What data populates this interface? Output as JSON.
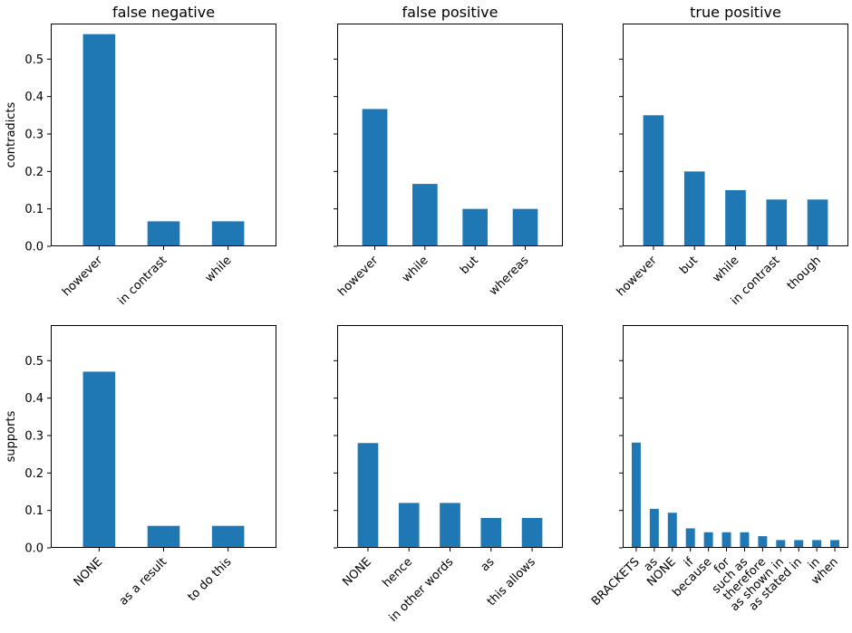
{
  "chart_data": [
    {
      "type": "bar",
      "title": "false negative",
      "ylabel": "contradicts",
      "categories": [
        "however",
        "in contrast",
        "while"
      ],
      "values": [
        0.5667,
        0.0667,
        0.0667
      ],
      "ylim": [
        0,
        0.595
      ],
      "yticks": [
        0.0,
        0.1,
        0.2,
        0.3,
        0.4,
        0.5
      ],
      "ytick_labels": [
        "0.0",
        "0.1",
        "0.2",
        "0.3",
        "0.4",
        "0.5"
      ],
      "color": "#1f77b4"
    },
    {
      "type": "bar",
      "title": "false positive",
      "ylabel": "",
      "categories": [
        "however",
        "while",
        "but",
        "whereas"
      ],
      "values": [
        0.3667,
        0.1667,
        0.1,
        0.1
      ],
      "ylim": [
        0,
        0.595
      ],
      "yticks": [
        0.0,
        0.1,
        0.2,
        0.3,
        0.4,
        0.5
      ],
      "ytick_labels": [],
      "color": "#1f77b4"
    },
    {
      "type": "bar",
      "title": "true positive",
      "ylabel": "",
      "categories": [
        "however",
        "but",
        "while",
        "in contrast",
        "though"
      ],
      "values": [
        0.35,
        0.2,
        0.15,
        0.125,
        0.125
      ],
      "ylim": [
        0,
        0.595
      ],
      "yticks": [
        0.0,
        0.1,
        0.2,
        0.3,
        0.4,
        0.5
      ],
      "ytick_labels": [],
      "color": "#1f77b4"
    },
    {
      "type": "bar",
      "title": "",
      "ylabel": "supports",
      "categories": [
        "NONE",
        "as a result",
        "to do this"
      ],
      "values": [
        0.4706,
        0.0588,
        0.0588
      ],
      "ylim": [
        0,
        0.595
      ],
      "yticks": [
        0.0,
        0.1,
        0.2,
        0.3,
        0.4,
        0.5
      ],
      "ytick_labels": [
        "0.0",
        "0.1",
        "0.2",
        "0.3",
        "0.4",
        "0.5"
      ],
      "color": "#1f77b4"
    },
    {
      "type": "bar",
      "title": "",
      "ylabel": "",
      "categories": [
        "NONE",
        "hence",
        "in other words",
        "as",
        "this allows"
      ],
      "values": [
        0.28,
        0.12,
        0.12,
        0.08,
        0.08
      ],
      "ylim": [
        0,
        0.595
      ],
      "yticks": [
        0.0,
        0.1,
        0.2,
        0.3,
        0.4,
        0.5
      ],
      "ytick_labels": [],
      "color": "#1f77b4"
    },
    {
      "type": "bar",
      "title": "",
      "ylabel": "",
      "categories": [
        "BRACKETS",
        "as",
        "NONE",
        "if",
        "because",
        "for",
        "such as",
        "therefore",
        "as shown in",
        "as stated in",
        "in",
        "when"
      ],
      "values": [
        0.2812,
        0.1042,
        0.0938,
        0.0521,
        0.0417,
        0.0417,
        0.0417,
        0.0312,
        0.0208,
        0.0208,
        0.0208,
        0.0208
      ],
      "ylim": [
        0,
        0.595
      ],
      "yticks": [
        0.0,
        0.1,
        0.2,
        0.3,
        0.4,
        0.5
      ],
      "ytick_labels": [],
      "color": "#1f77b4"
    }
  ]
}
